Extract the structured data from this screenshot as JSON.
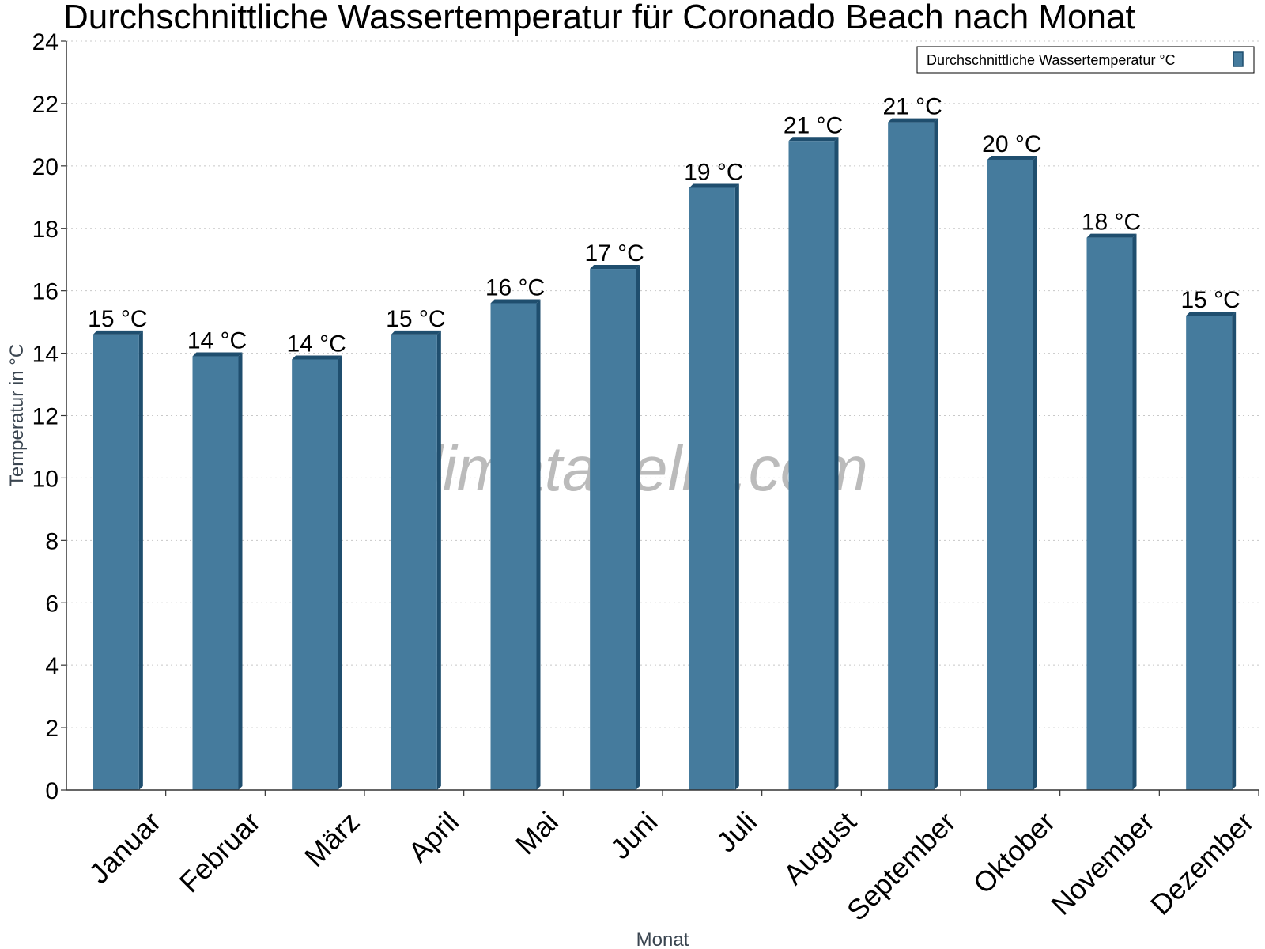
{
  "chart_data": {
    "type": "bar",
    "title": "Durchschnittliche Wassertemperatur für Coronado Beach nach Monat",
    "xlabel": "Monat",
    "ylabel": "Temperatur in °C",
    "ylim": [
      0,
      24
    ],
    "y_ticks": [
      0,
      2,
      4,
      6,
      8,
      10,
      12,
      14,
      16,
      18,
      20,
      22,
      24
    ],
    "grid": true,
    "legend_position": "top-right",
    "categories": [
      "Januar",
      "Februar",
      "März",
      "April",
      "Mai",
      "Juni",
      "Juli",
      "August",
      "September",
      "Oktober",
      "November",
      "Dezember"
    ],
    "series": [
      {
        "name": "Durchschnittliche Wassertemperatur °C",
        "color": "#457b9d",
        "values": [
          14.6,
          13.9,
          13.8,
          14.6,
          15.6,
          16.7,
          19.3,
          20.8,
          21.4,
          20.2,
          17.7,
          15.2
        ],
        "data_labels": [
          "15 °C",
          "14 °C",
          "14 °C",
          "15 °C",
          "16 °C",
          "17 °C",
          "19 °C",
          "21 °C",
          "21 °C",
          "20 °C",
          "18 °C",
          "15 °C"
        ]
      }
    ],
    "bar_color": "#457b9d",
    "bar_shade_color": "#1f4e6e",
    "watermark": "klimatabelle.com"
  }
}
